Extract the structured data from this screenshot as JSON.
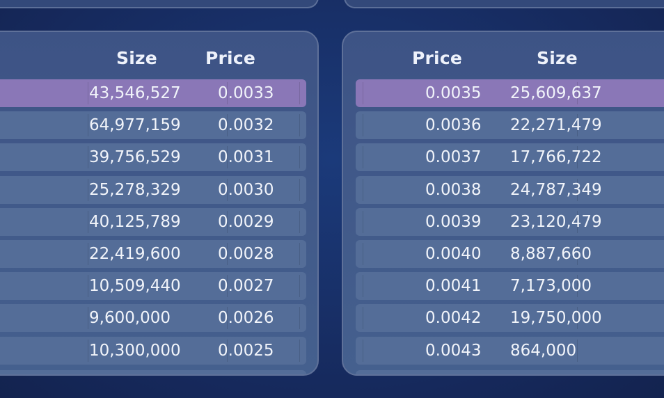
{
  "bids": {
    "headers": {
      "size": "Size",
      "price": "Price"
    },
    "rows": [
      {
        "size": "43,546,527",
        "price": "0.0033",
        "highlighted": true
      },
      {
        "size": "64,977,159",
        "price": "0.0032",
        "highlighted": false
      },
      {
        "size": "39,756,529",
        "price": "0.0031",
        "highlighted": false
      },
      {
        "size": "25,278,329",
        "price": "0.0030",
        "highlighted": false
      },
      {
        "size": "40,125,789",
        "price": "0.0029",
        "highlighted": false
      },
      {
        "size": "22,419,600",
        "price": "0.0028",
        "highlighted": false
      },
      {
        "size": "10,509,440",
        "price": "0.0027",
        "highlighted": false
      },
      {
        "size": "9,600,000",
        "price": "0.0026",
        "highlighted": false
      },
      {
        "size": "10,300,000",
        "price": "0.0025",
        "highlighted": false
      }
    ]
  },
  "asks": {
    "headers": {
      "price": "Price",
      "size": "Size"
    },
    "rows": [
      {
        "price": "0.0035",
        "size": "25,609,637",
        "highlighted": true
      },
      {
        "price": "0.0036",
        "size": "22,271,479",
        "highlighted": false
      },
      {
        "price": "0.0037",
        "size": "17,766,722",
        "highlighted": false
      },
      {
        "price": "0.0038",
        "size": "24,787,349",
        "highlighted": false
      },
      {
        "price": "0.0039",
        "size": "23,120,479",
        "highlighted": false
      },
      {
        "price": "0.0040",
        "size": "8,887,660",
        "highlighted": false
      },
      {
        "price": "0.0041",
        "size": "7,173,000",
        "highlighted": false
      },
      {
        "price": "0.0042",
        "size": "19,750,000",
        "highlighted": false
      },
      {
        "price": "0.0043",
        "size": "864,000",
        "highlighted": false
      }
    ]
  },
  "colors": {
    "background": "#172d63",
    "panel": "#3d5385",
    "row": "#546d98",
    "highlight": "#8a77b7",
    "text": "#f1f4fa"
  }
}
